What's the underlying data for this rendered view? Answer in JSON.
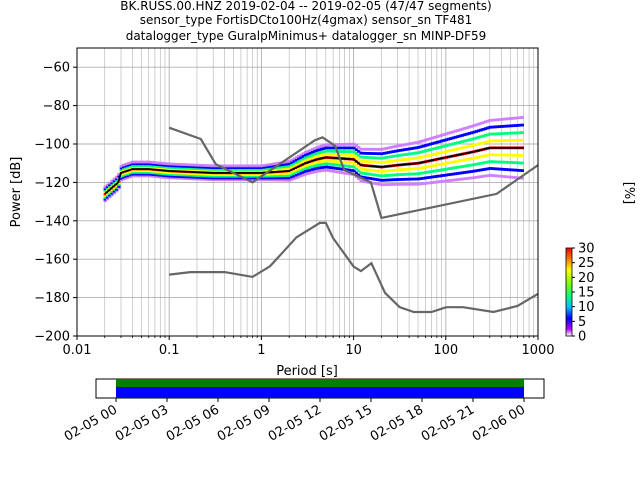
{
  "chart_data": {
    "type": "heatmap",
    "title_lines": [
      "BK.RUSS.00.HNZ   2019-02-04 -- 2019-02-05  (47/47 segments)",
      "sensor_type FortisDCto100Hz(4gmax) sensor_sn TF481",
      "datalogger_type GuralpMinimus+ datalogger_sn MINP-DF59"
    ],
    "xlabel": "Period [s]",
    "ylabel": "Power [dB]",
    "x_scale": "log",
    "xlim": [
      0.01,
      1000
    ],
    "ylim": [
      -200,
      -50
    ],
    "grid": true,
    "x_tick_labels": [
      "0.01",
      "0.1",
      "1",
      "10",
      "100",
      "1000"
    ],
    "y_tick_values": [
      -200,
      -180,
      -160,
      -140,
      -120,
      -100,
      -80,
      -60
    ],
    "y_tick_labels": [
      "−200",
      "−180",
      "−160",
      "−140",
      "−120",
      "−100",
      "−80",
      "−60"
    ],
    "colorbar": {
      "label": "[%]",
      "range": [
        0,
        30
      ],
      "ticks": [
        0,
        5,
        10,
        15,
        20,
        25,
        30
      ],
      "tick_labels": [
        "0",
        "5",
        "10",
        "15",
        "20",
        "25",
        "30"
      ]
    },
    "series": [
      {
        "role": "mode",
        "color": "#000000",
        "points": [
          [
            0.02,
            -126
          ],
          [
            0.025,
            -122
          ],
          [
            0.028,
            -120
          ],
          [
            0.03,
            -115
          ],
          [
            0.04,
            -113
          ],
          [
            0.06,
            -113
          ],
          [
            0.1,
            -114
          ],
          [
            0.3,
            -115
          ],
          [
            1,
            -115
          ],
          [
            2,
            -114
          ],
          [
            3,
            -110
          ],
          [
            4,
            -108
          ],
          [
            5,
            -107
          ],
          [
            10,
            -108
          ],
          [
            12,
            -111
          ],
          [
            20,
            -112
          ],
          [
            30,
            -111
          ],
          [
            50,
            -110
          ],
          [
            100,
            -107
          ],
          [
            200,
            -104
          ],
          [
            300,
            -102
          ],
          [
            700,
            -102
          ]
        ]
      },
      {
        "role": "nhnm",
        "color": "#666666",
        "points": [
          [
            0.1,
            -91.5
          ],
          [
            0.22,
            -97.4
          ],
          [
            0.32,
            -110.5
          ],
          [
            0.8,
            -120
          ],
          [
            3.8,
            -98
          ],
          [
            4.6,
            -96.5
          ],
          [
            6.3,
            -101
          ],
          [
            7.9,
            -113.5
          ],
          [
            15.4,
            -120
          ],
          [
            20,
            -138.5
          ],
          [
            354.8,
            -126
          ],
          [
            1000,
            -111
          ]
        ]
      },
      {
        "role": "nlnm",
        "color": "#666666",
        "points": [
          [
            0.1,
            -168
          ],
          [
            0.17,
            -166.7
          ],
          [
            0.4,
            -166.7
          ],
          [
            0.8,
            -169.2
          ],
          [
            1.24,
            -163.7
          ],
          [
            2.4,
            -148.6
          ],
          [
            4.3,
            -141.1
          ],
          [
            5,
            -141.1
          ],
          [
            6,
            -149
          ],
          [
            10,
            -163.8
          ],
          [
            12,
            -166.2
          ],
          [
            15.6,
            -162.1
          ],
          [
            21.9,
            -177.5
          ],
          [
            31.6,
            -185
          ],
          [
            45,
            -187.5
          ],
          [
            70,
            -187.5
          ],
          [
            101,
            -185
          ],
          [
            154,
            -185
          ],
          [
            328,
            -187.5
          ],
          [
            600,
            -184.4
          ],
          [
            1000,
            -178
          ]
        ]
      }
    ]
  },
  "timeline": {
    "tick_labels": [
      "02-05 00",
      "02-05 03",
      "02-05 06",
      "02-05 09",
      "02-05 12",
      "02-05 15",
      "02-05 18",
      "02-05 21",
      "02-06 00"
    ],
    "colors": {
      "coverage": "#0000ff",
      "gaps_free": "#008000"
    }
  }
}
